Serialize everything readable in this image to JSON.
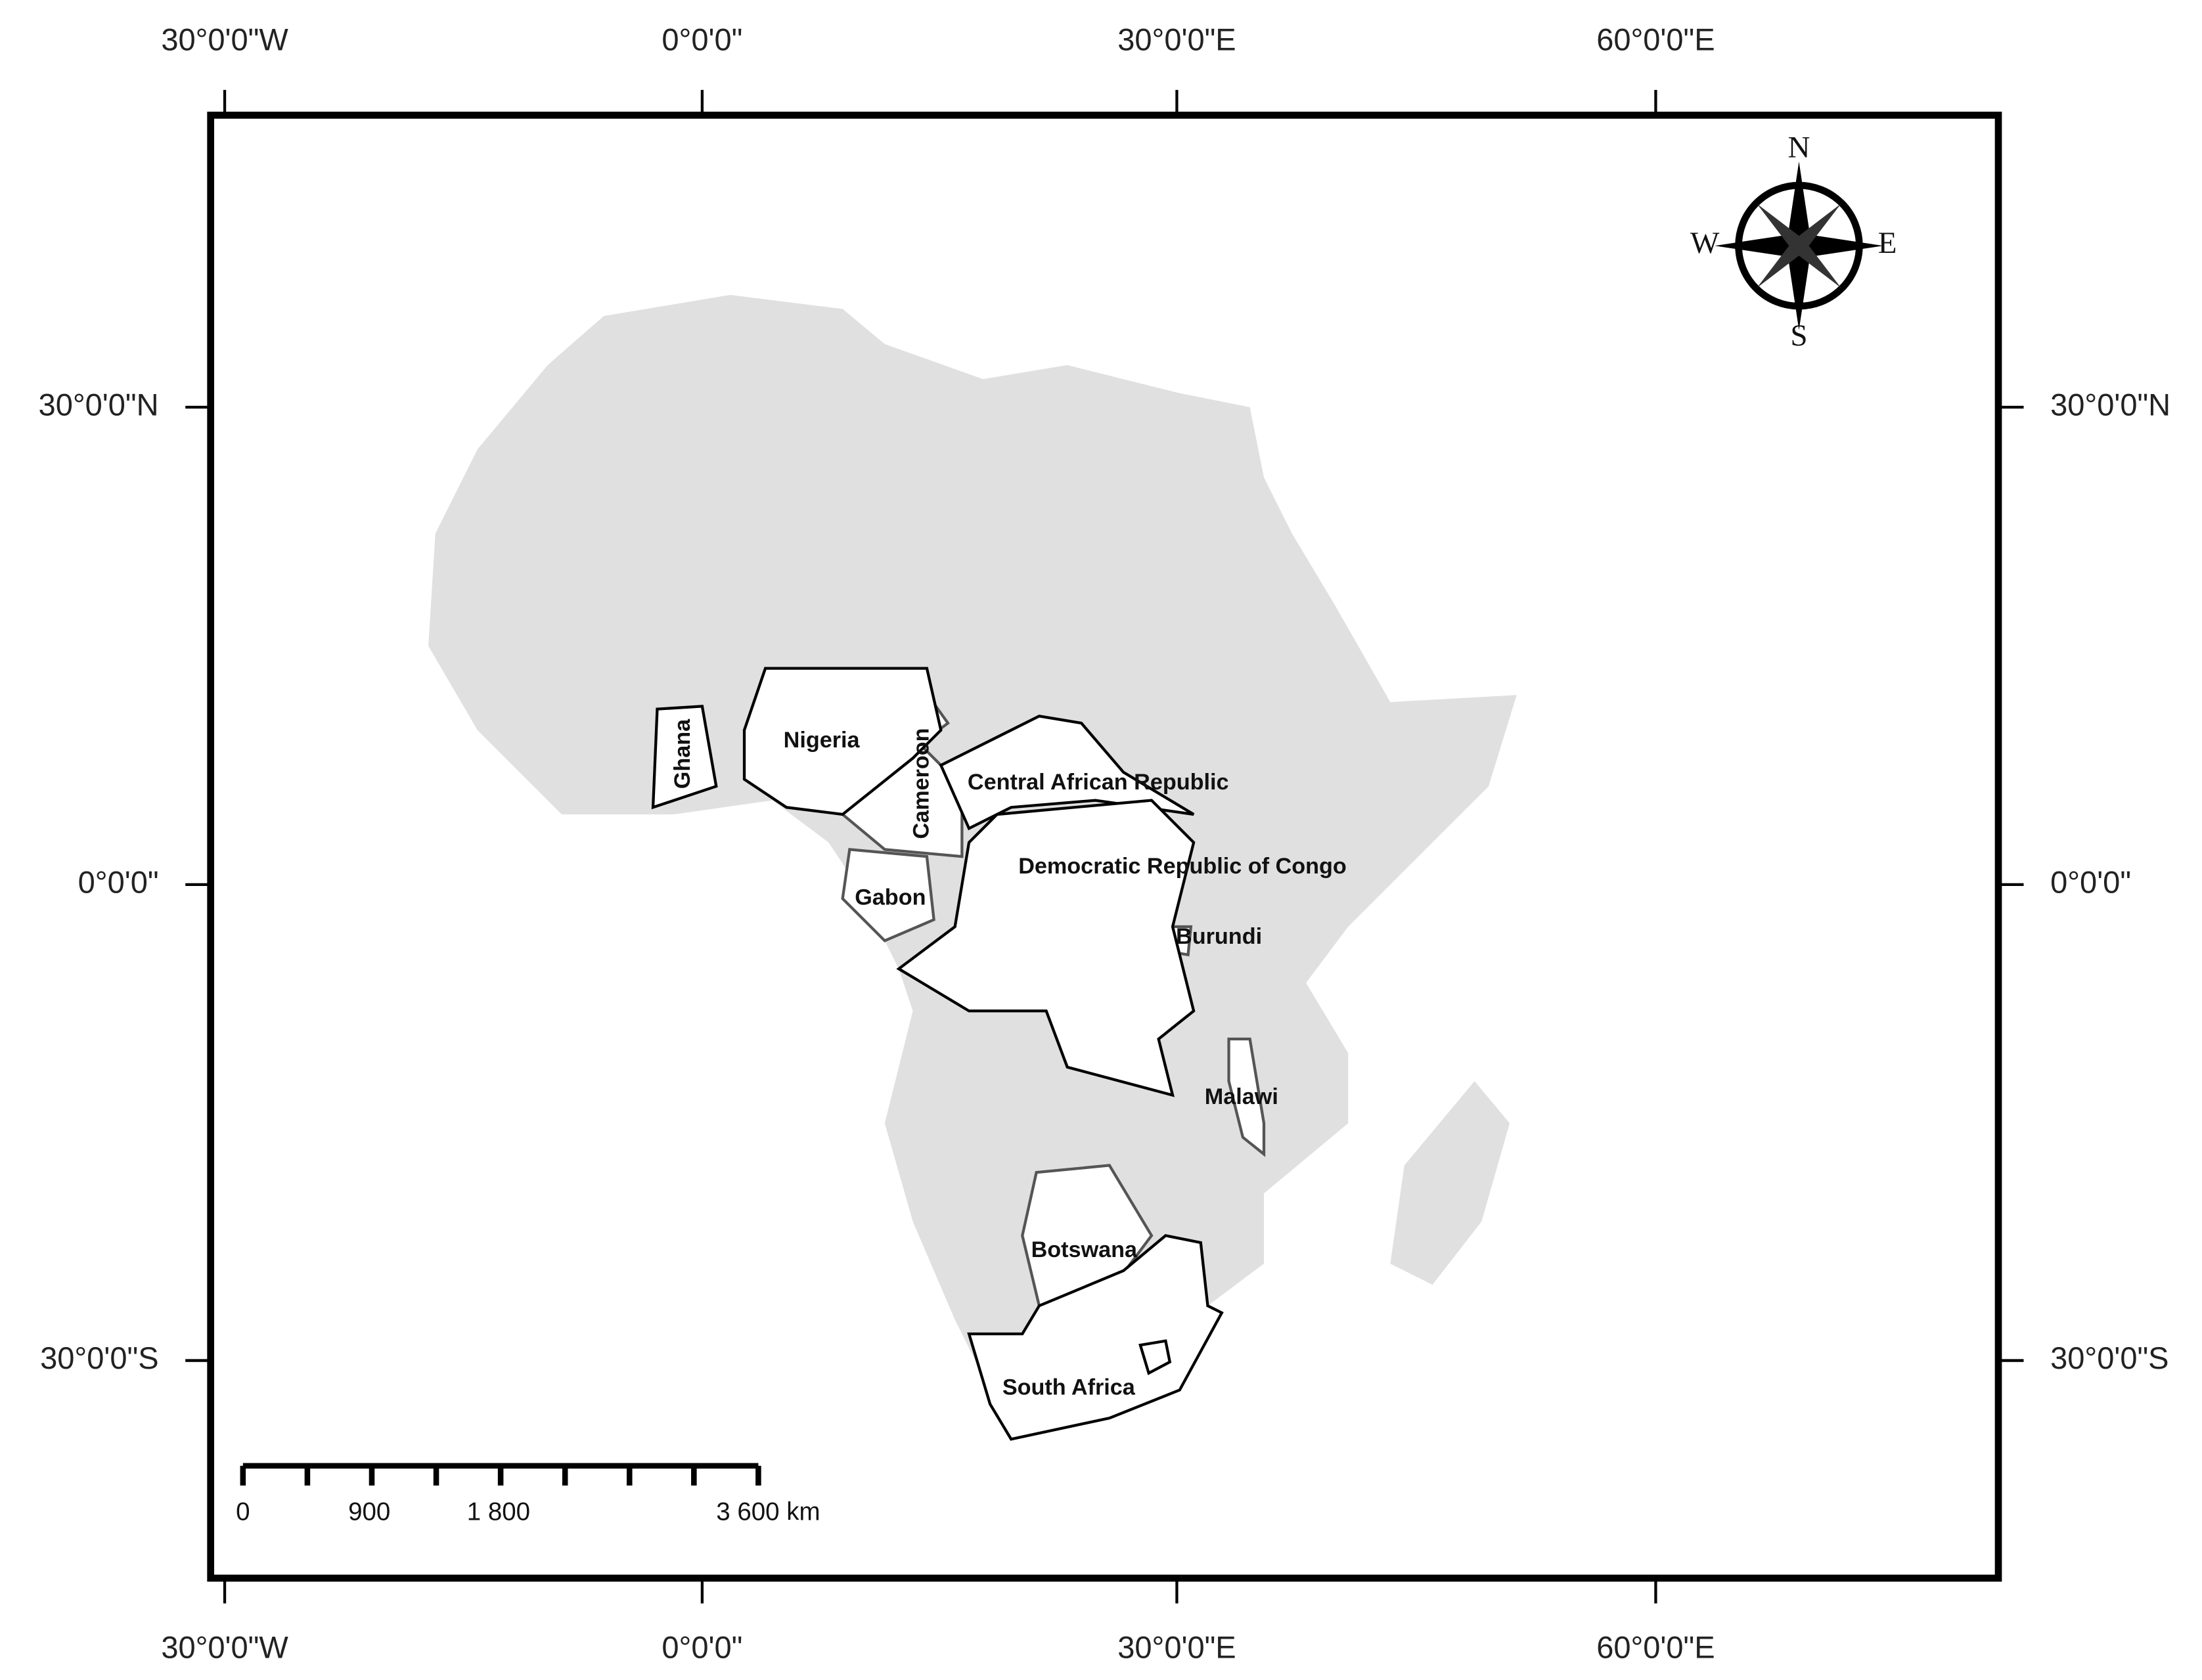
{
  "map": {
    "graticule": {
      "longitudes": [
        "30°0'0\"W",
        "0°0'0\"",
        "30°0'0\"E",
        "60°0'0\"E"
      ],
      "latitudes": [
        "30°0'0\"N",
        "0°0'0\"",
        "30°0'0\"S"
      ]
    },
    "countries": [
      "Ghana",
      "Nigeria",
      "Cameroon",
      "Central African Republic",
      "Democratic Republic of Congo",
      "Gabon",
      "Burundi",
      "Malawi",
      "Botswana",
      "South Africa"
    ],
    "compass": {
      "north": "N",
      "south": "S",
      "west": "W",
      "east": "E"
    },
    "scale_bar": {
      "labels": [
        "0",
        "900",
        "1 800",
        "3 600 km"
      ]
    }
  }
}
